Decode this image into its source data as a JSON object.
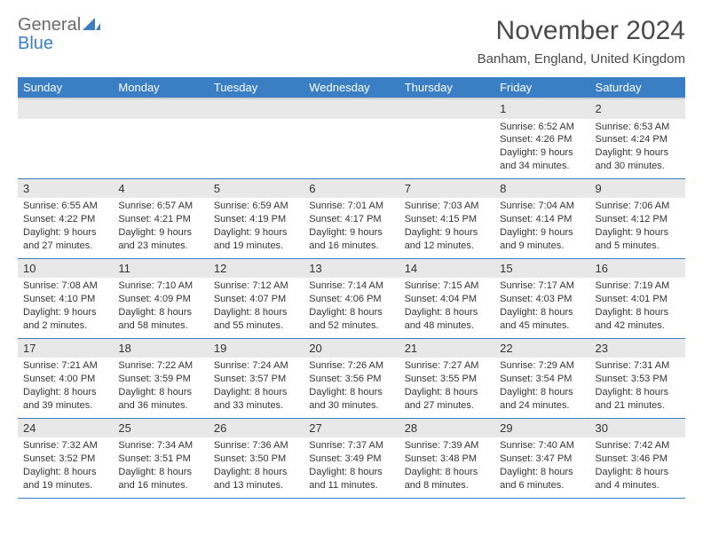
{
  "logo": {
    "text1": "General",
    "text2": "Blue"
  },
  "title": "November 2024",
  "location": "Banham, England, United Kingdom",
  "colors": {
    "header_bg": "#3a7fc4",
    "header_text": "#ffffff",
    "daynum_bg": "#e8e8e8",
    "border": "#3a7fc4",
    "text": "#333333",
    "logo_gray": "#6b6b6b",
    "logo_blue": "#3a7fc4"
  },
  "weekdays": [
    "Sunday",
    "Monday",
    "Tuesday",
    "Wednesday",
    "Thursday",
    "Friday",
    "Saturday"
  ],
  "weeks": [
    [
      null,
      null,
      null,
      null,
      null,
      {
        "n": "1",
        "sr": "Sunrise: 6:52 AM",
        "ss": "Sunset: 4:26 PM",
        "dl": "Daylight: 9 hours and 34 minutes."
      },
      {
        "n": "2",
        "sr": "Sunrise: 6:53 AM",
        "ss": "Sunset: 4:24 PM",
        "dl": "Daylight: 9 hours and 30 minutes."
      }
    ],
    [
      {
        "n": "3",
        "sr": "Sunrise: 6:55 AM",
        "ss": "Sunset: 4:22 PM",
        "dl": "Daylight: 9 hours and 27 minutes."
      },
      {
        "n": "4",
        "sr": "Sunrise: 6:57 AM",
        "ss": "Sunset: 4:21 PM",
        "dl": "Daylight: 9 hours and 23 minutes."
      },
      {
        "n": "5",
        "sr": "Sunrise: 6:59 AM",
        "ss": "Sunset: 4:19 PM",
        "dl": "Daylight: 9 hours and 19 minutes."
      },
      {
        "n": "6",
        "sr": "Sunrise: 7:01 AM",
        "ss": "Sunset: 4:17 PM",
        "dl": "Daylight: 9 hours and 16 minutes."
      },
      {
        "n": "7",
        "sr": "Sunrise: 7:03 AM",
        "ss": "Sunset: 4:15 PM",
        "dl": "Daylight: 9 hours and 12 minutes."
      },
      {
        "n": "8",
        "sr": "Sunrise: 7:04 AM",
        "ss": "Sunset: 4:14 PM",
        "dl": "Daylight: 9 hours and 9 minutes."
      },
      {
        "n": "9",
        "sr": "Sunrise: 7:06 AM",
        "ss": "Sunset: 4:12 PM",
        "dl": "Daylight: 9 hours and 5 minutes."
      }
    ],
    [
      {
        "n": "10",
        "sr": "Sunrise: 7:08 AM",
        "ss": "Sunset: 4:10 PM",
        "dl": "Daylight: 9 hours and 2 minutes."
      },
      {
        "n": "11",
        "sr": "Sunrise: 7:10 AM",
        "ss": "Sunset: 4:09 PM",
        "dl": "Daylight: 8 hours and 58 minutes."
      },
      {
        "n": "12",
        "sr": "Sunrise: 7:12 AM",
        "ss": "Sunset: 4:07 PM",
        "dl": "Daylight: 8 hours and 55 minutes."
      },
      {
        "n": "13",
        "sr": "Sunrise: 7:14 AM",
        "ss": "Sunset: 4:06 PM",
        "dl": "Daylight: 8 hours and 52 minutes."
      },
      {
        "n": "14",
        "sr": "Sunrise: 7:15 AM",
        "ss": "Sunset: 4:04 PM",
        "dl": "Daylight: 8 hours and 48 minutes."
      },
      {
        "n": "15",
        "sr": "Sunrise: 7:17 AM",
        "ss": "Sunset: 4:03 PM",
        "dl": "Daylight: 8 hours and 45 minutes."
      },
      {
        "n": "16",
        "sr": "Sunrise: 7:19 AM",
        "ss": "Sunset: 4:01 PM",
        "dl": "Daylight: 8 hours and 42 minutes."
      }
    ],
    [
      {
        "n": "17",
        "sr": "Sunrise: 7:21 AM",
        "ss": "Sunset: 4:00 PM",
        "dl": "Daylight: 8 hours and 39 minutes."
      },
      {
        "n": "18",
        "sr": "Sunrise: 7:22 AM",
        "ss": "Sunset: 3:59 PM",
        "dl": "Daylight: 8 hours and 36 minutes."
      },
      {
        "n": "19",
        "sr": "Sunrise: 7:24 AM",
        "ss": "Sunset: 3:57 PM",
        "dl": "Daylight: 8 hours and 33 minutes."
      },
      {
        "n": "20",
        "sr": "Sunrise: 7:26 AM",
        "ss": "Sunset: 3:56 PM",
        "dl": "Daylight: 8 hours and 30 minutes."
      },
      {
        "n": "21",
        "sr": "Sunrise: 7:27 AM",
        "ss": "Sunset: 3:55 PM",
        "dl": "Daylight: 8 hours and 27 minutes."
      },
      {
        "n": "22",
        "sr": "Sunrise: 7:29 AM",
        "ss": "Sunset: 3:54 PM",
        "dl": "Daylight: 8 hours and 24 minutes."
      },
      {
        "n": "23",
        "sr": "Sunrise: 7:31 AM",
        "ss": "Sunset: 3:53 PM",
        "dl": "Daylight: 8 hours and 21 minutes."
      }
    ],
    [
      {
        "n": "24",
        "sr": "Sunrise: 7:32 AM",
        "ss": "Sunset: 3:52 PM",
        "dl": "Daylight: 8 hours and 19 minutes."
      },
      {
        "n": "25",
        "sr": "Sunrise: 7:34 AM",
        "ss": "Sunset: 3:51 PM",
        "dl": "Daylight: 8 hours and 16 minutes."
      },
      {
        "n": "26",
        "sr": "Sunrise: 7:36 AM",
        "ss": "Sunset: 3:50 PM",
        "dl": "Daylight: 8 hours and 13 minutes."
      },
      {
        "n": "27",
        "sr": "Sunrise: 7:37 AM",
        "ss": "Sunset: 3:49 PM",
        "dl": "Daylight: 8 hours and 11 minutes."
      },
      {
        "n": "28",
        "sr": "Sunrise: 7:39 AM",
        "ss": "Sunset: 3:48 PM",
        "dl": "Daylight: 8 hours and 8 minutes."
      },
      {
        "n": "29",
        "sr": "Sunrise: 7:40 AM",
        "ss": "Sunset: 3:47 PM",
        "dl": "Daylight: 8 hours and 6 minutes."
      },
      {
        "n": "30",
        "sr": "Sunrise: 7:42 AM",
        "ss": "Sunset: 3:46 PM",
        "dl": "Daylight: 8 hours and 4 minutes."
      }
    ]
  ]
}
